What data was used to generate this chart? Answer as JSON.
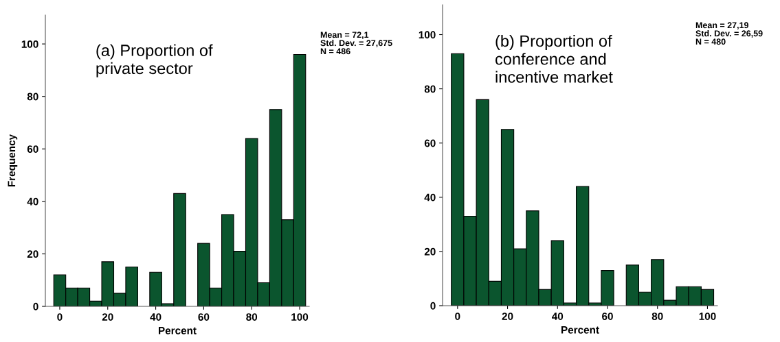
{
  "chart_data": [
    {
      "type": "histogram",
      "title": "(a) Proportion of\nprivate sector",
      "xlabel": "Percent",
      "ylabel": "Frequency",
      "bins": [
        -2.5,
        2.5,
        7.5,
        12.5,
        17.5,
        22.5,
        27.5,
        32.5,
        37.5,
        42.5,
        47.5,
        52.5,
        57.5,
        62.5,
        67.5,
        72.5,
        77.5,
        82.5,
        87.5,
        92.5,
        97.5,
        102.5
      ],
      "values": [
        12,
        7,
        7,
        2,
        17,
        5,
        15,
        0,
        13,
        1,
        43,
        0,
        24,
        7,
        35,
        21,
        64,
        9,
        75,
        33,
        96
      ],
      "color": "#0b552e",
      "xlim": [
        -6,
        104
      ],
      "ylim": [
        0,
        111
      ],
      "xticks": [
        0,
        20,
        40,
        60,
        80,
        100
      ],
      "yticks": [
        0,
        20,
        40,
        60,
        80,
        100
      ],
      "grid": false,
      "annotations": [
        "Mean = 72,1",
        "Std. Dev. = 27,675",
        "N = 486"
      ]
    },
    {
      "type": "histogram",
      "title": "(b) Proportion of\nconference and\nincentive market",
      "xlabel": "Percent",
      "bins": [
        -2.5,
        2.5,
        7.5,
        12.5,
        17.5,
        22.5,
        27.5,
        32.5,
        37.5,
        42.5,
        47.5,
        52.5,
        57.5,
        62.5,
        67.5,
        72.5,
        77.5,
        82.5,
        87.5,
        92.5,
        97.5,
        102.5
      ],
      "values": [
        93,
        33,
        76,
        9,
        65,
        21,
        35,
        6,
        24,
        1,
        44,
        1,
        13,
        0,
        15,
        5,
        17,
        2,
        7,
        7,
        6
      ],
      "color": "#0b552e",
      "xlim": [
        -6,
        104
      ],
      "ylim": [
        0,
        111
      ],
      "xticks": [
        0,
        20,
        40,
        60,
        80,
        100
      ],
      "yticks": [
        0,
        20,
        40,
        60,
        80,
        100
      ],
      "grid": false,
      "annotations": [
        "Mean = 27,19",
        "Std. Dev. = 26,59",
        "N = 480"
      ]
    }
  ]
}
